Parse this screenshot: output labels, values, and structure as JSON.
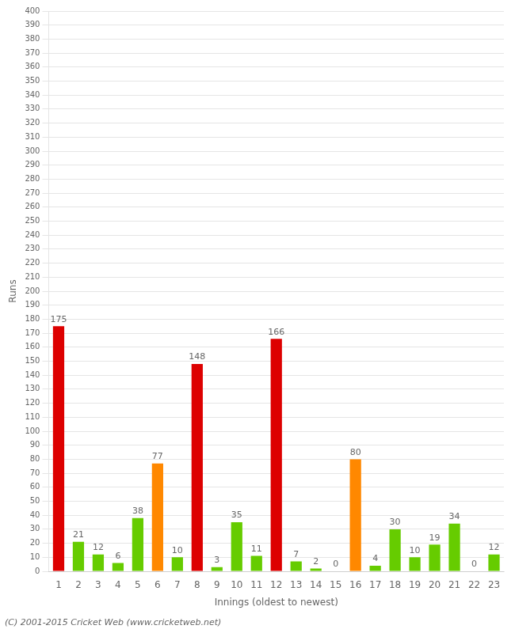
{
  "chart_data": {
    "type": "bar",
    "xlabel": "Innings (oldest to newest)",
    "ylabel": "Runs",
    "categories": [
      "1",
      "2",
      "3",
      "4",
      "5",
      "6",
      "7",
      "8",
      "9",
      "10",
      "11",
      "12",
      "13",
      "14",
      "15",
      "16",
      "17",
      "18",
      "19",
      "20",
      "21",
      "22",
      "23"
    ],
    "values": [
      175,
      21,
      12,
      6,
      38,
      77,
      10,
      148,
      3,
      35,
      11,
      166,
      7,
      2,
      0,
      80,
      4,
      30,
      10,
      19,
      34,
      0,
      12
    ],
    "colors": [
      "#dd0000",
      "#66cc00",
      "#66cc00",
      "#66cc00",
      "#66cc00",
      "#ff8800",
      "#66cc00",
      "#dd0000",
      "#66cc00",
      "#66cc00",
      "#66cc00",
      "#dd0000",
      "#66cc00",
      "#66cc00",
      "#66cc00",
      "#ff8800",
      "#66cc00",
      "#66cc00",
      "#66cc00",
      "#66cc00",
      "#66cc00",
      "#66cc00",
      "#66cc00"
    ],
    "ylim": [
      0,
      400
    ],
    "yticks": [
      0,
      10,
      20,
      30,
      40,
      50,
      60,
      70,
      80,
      90,
      100,
      110,
      120,
      130,
      140,
      150,
      160,
      170,
      180,
      190,
      200,
      210,
      220,
      230,
      240,
      250,
      260,
      270,
      280,
      290,
      300,
      310,
      320,
      330,
      340,
      350,
      360,
      370,
      380,
      390,
      400
    ],
    "grid": true,
    "data_labels": true,
    "annotations": [
      "(C) 2001-2015 Cricket Web (www.cricketweb.net)"
    ]
  }
}
